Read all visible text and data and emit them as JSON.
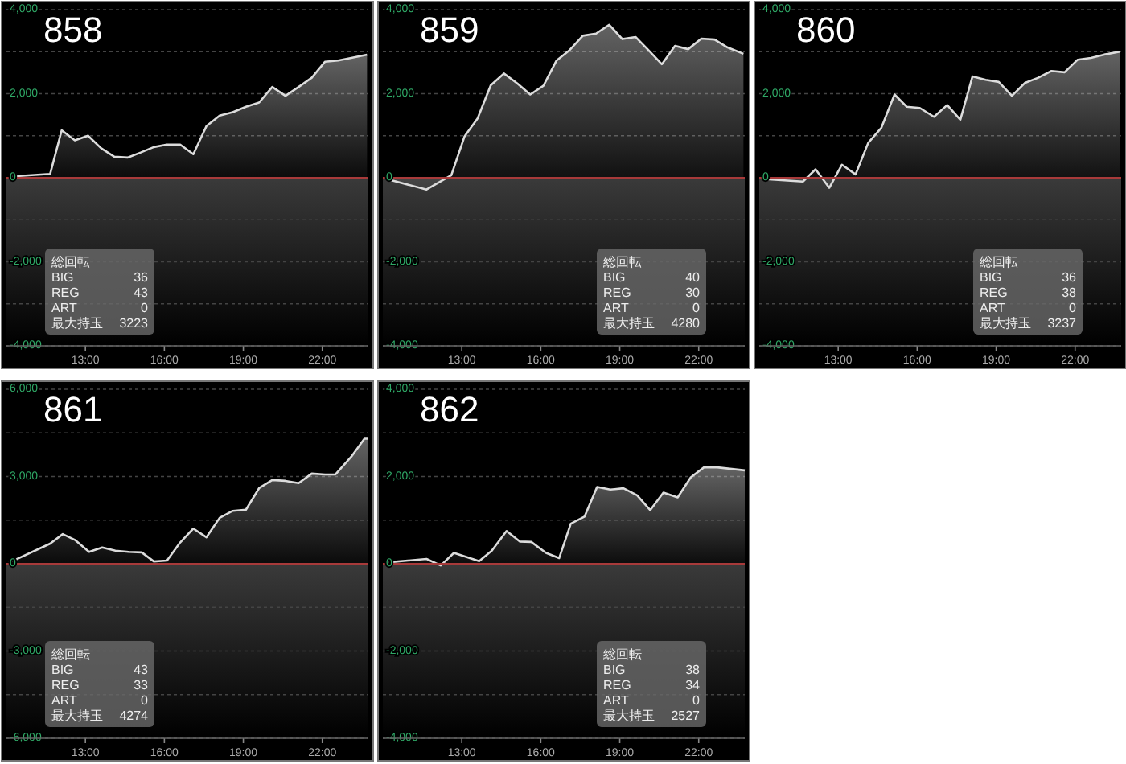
{
  "chart_data": [
    {
      "type": "area",
      "title": "858",
      "x": [
        10.14,
        11.66,
        12.1,
        12.6,
        13.1,
        13.6,
        14.1,
        14.6,
        15.1,
        15.6,
        16.1,
        16.6,
        17.1,
        17.6,
        18.1,
        18.6,
        19.1,
        19.6,
        20.1,
        20.6,
        21.1,
        21.6,
        22.1,
        22.6,
        23.1,
        23.7
      ],
      "series": [
        {
          "color": "#dcdcdc",
          "values": [
            30,
            90,
            1130,
            890,
            1000,
            700,
            500,
            480,
            600,
            730,
            790,
            790,
            560,
            1230,
            1480,
            1560,
            1690,
            1790,
            2160,
            1950,
            2160,
            2380,
            2760,
            2790,
            2850,
            2930
          ]
        }
      ],
      "xlim": [
        10,
        23.75
      ],
      "xticks": [
        {
          "value": 13,
          "label": "13:00"
        },
        {
          "value": 16,
          "label": "16:00"
        },
        {
          "value": 19,
          "label": "19:00"
        },
        {
          "value": 22,
          "label": "22:00"
        }
      ],
      "ylim": [
        -4000,
        4000
      ],
      "yticks": [
        {
          "value": 4000,
          "label": "4,000"
        },
        {
          "value": 3000,
          "label": null
        },
        {
          "value": 2000,
          "label": "2,000"
        },
        {
          "value": 1000,
          "label": null
        },
        {
          "value": 0,
          "label": "0"
        },
        {
          "value": -1000,
          "label": null
        },
        {
          "value": -2000,
          "label": "-2,000"
        },
        {
          "value": -3000,
          "label": null
        },
        {
          "value": -4000,
          "label": "-4,000"
        }
      ],
      "grid": "y",
      "ref_lines": [
        {
          "axis": "y",
          "value": 0,
          "color": "#a83a3a"
        }
      ],
      "annotations": [
        "総回転",
        "BIG 36",
        "REG 43",
        "ART 0",
        "最大持玉 3223"
      ]
    },
    {
      "type": "area",
      "title": "859",
      "x": [
        10.14,
        11.66,
        12.6,
        13.1,
        13.6,
        14.1,
        14.6,
        15.1,
        15.6,
        16.1,
        16.6,
        17.1,
        17.6,
        18.1,
        18.6,
        19.1,
        19.6,
        20.1,
        20.6,
        21.1,
        21.6,
        22.1,
        22.6,
        23.1,
        23.7
      ],
      "series": [
        {
          "color": "#dcdcdc",
          "values": [
            -30,
            -280,
            60,
            980,
            1410,
            2200,
            2480,
            2250,
            1980,
            2190,
            2790,
            3040,
            3380,
            3430,
            3640,
            3300,
            3350,
            3030,
            2700,
            3140,
            3060,
            3310,
            3290,
            3100,
            2950
          ]
        }
      ],
      "xlim": [
        10,
        23.75
      ],
      "xticks": [
        {
          "value": 13,
          "label": "13:00"
        },
        {
          "value": 16,
          "label": "16:00"
        },
        {
          "value": 19,
          "label": "19:00"
        },
        {
          "value": 22,
          "label": "22:00"
        }
      ],
      "ylim": [
        -4000,
        4000
      ],
      "yticks": [
        {
          "value": 4000,
          "label": "4,000"
        },
        {
          "value": 3000,
          "label": null
        },
        {
          "value": 2000,
          "label": "2,000"
        },
        {
          "value": 1000,
          "label": null
        },
        {
          "value": 0,
          "label": "0"
        },
        {
          "value": -1000,
          "label": null
        },
        {
          "value": -2000,
          "label": "-2,000"
        },
        {
          "value": -3000,
          "label": null
        },
        {
          "value": -4000,
          "label": "-4,000"
        }
      ],
      "grid": "y",
      "ref_lines": [
        {
          "axis": "y",
          "value": 0,
          "color": "#a83a3a"
        }
      ],
      "annotations": [
        "総回転",
        "BIG 40",
        "REG 30",
        "ART 0",
        "最大持玉 4280"
      ]
    },
    {
      "type": "area",
      "title": "860",
      "x": [
        10.14,
        11.66,
        12.14,
        12.66,
        13.14,
        13.66,
        14.14,
        14.64,
        15.14,
        15.6,
        16.1,
        16.64,
        17.14,
        17.64,
        18.1,
        18.6,
        19.1,
        19.6,
        20.1,
        20.6,
        21.1,
        21.6,
        22.1,
        22.6,
        23.1,
        23.7
      ],
      "series": [
        {
          "color": "#dcdcdc",
          "values": [
            -30,
            -90,
            200,
            -240,
            310,
            80,
            830,
            1190,
            1980,
            1690,
            1660,
            1450,
            1730,
            1380,
            2410,
            2330,
            2280,
            1950,
            2260,
            2380,
            2540,
            2510,
            2810,
            2850,
            2930,
            3000
          ]
        }
      ],
      "xlim": [
        10,
        23.75
      ],
      "xticks": [
        {
          "value": 13,
          "label": "13:00"
        },
        {
          "value": 16,
          "label": "16:00"
        },
        {
          "value": 19,
          "label": "19:00"
        },
        {
          "value": 22,
          "label": "22:00"
        }
      ],
      "ylim": [
        -4000,
        4000
      ],
      "yticks": [
        {
          "value": 4000,
          "label": "4,000"
        },
        {
          "value": 3000,
          "label": null
        },
        {
          "value": 2000,
          "label": "2,000"
        },
        {
          "value": 1000,
          "label": null
        },
        {
          "value": 0,
          "label": "0"
        },
        {
          "value": -1000,
          "label": null
        },
        {
          "value": -2000,
          "label": "-2,000"
        },
        {
          "value": -3000,
          "label": null
        },
        {
          "value": -4000,
          "label": "-4,000"
        }
      ],
      "grid": "y",
      "ref_lines": [
        {
          "axis": "y",
          "value": 0,
          "color": "#a83a3a"
        }
      ],
      "annotations": [
        "総回転",
        "BIG 36",
        "REG 38",
        "ART 0",
        "最大持玉 3237"
      ]
    },
    {
      "type": "area",
      "title": "861",
      "x": [
        10.1,
        11.66,
        12.14,
        12.6,
        13.14,
        13.64,
        14.14,
        14.64,
        15.14,
        15.6,
        16.1,
        16.6,
        17.1,
        17.6,
        18.1,
        18.6,
        19.1,
        19.6,
        20.1,
        20.6,
        21.1,
        21.6,
        22.1,
        22.5,
        23.1,
        23.6,
        23.75
      ],
      "series": [
        {
          "color": "#dcdcdc",
          "values": [
            40,
            690,
            1020,
            820,
            410,
            560,
            450,
            410,
            390,
            80,
            110,
            730,
            1210,
            910,
            1580,
            1820,
            1860,
            2600,
            2880,
            2850,
            2770,
            3100,
            3070,
            3070,
            3680,
            4300,
            4300
          ]
        }
      ],
      "xlim": [
        10,
        23.75
      ],
      "xticks": [
        {
          "value": 13,
          "label": "13:00"
        },
        {
          "value": 16,
          "label": "16:00"
        },
        {
          "value": 19,
          "label": "19:00"
        },
        {
          "value": 22,
          "label": "22:00"
        }
      ],
      "ylim": [
        -6000,
        6000
      ],
      "yticks": [
        {
          "value": 6000,
          "label": "6,000"
        },
        {
          "value": 4500,
          "label": null
        },
        {
          "value": 3000,
          "label": "3,000"
        },
        {
          "value": 1500,
          "label": null
        },
        {
          "value": 0,
          "label": "0"
        },
        {
          "value": -1500,
          "label": null
        },
        {
          "value": -3000,
          "label": "-3,000"
        },
        {
          "value": -4500,
          "label": null
        },
        {
          "value": -6000,
          "label": "-6,000"
        }
      ],
      "grid": "y",
      "ref_lines": [
        {
          "axis": "y",
          "value": 0,
          "color": "#a83a3a"
        }
      ],
      "annotations": [
        "総回転",
        "BIG 43",
        "REG 33",
        "ART 0",
        "最大持玉 4274"
      ]
    },
    {
      "type": "area",
      "title": "862",
      "x": [
        10.14,
        11.66,
        12.2,
        12.7,
        13.66,
        14.14,
        14.7,
        15.2,
        15.64,
        16.2,
        16.7,
        17.14,
        17.66,
        18.14,
        18.64,
        19.14,
        19.66,
        20.16,
        20.66,
        21.2,
        21.7,
        22.2,
        22.7,
        23.75
      ],
      "series": [
        {
          "color": "#dcdcdc",
          "values": [
            30,
            110,
            -40,
            250,
            60,
            300,
            750,
            510,
            500,
            250,
            130,
            920,
            1080,
            1760,
            1700,
            1730,
            1570,
            1230,
            1630,
            1520,
            1980,
            2210,
            2210,
            2140
          ]
        }
      ],
      "xlim": [
        10,
        23.75
      ],
      "xticks": [
        {
          "value": 13,
          "label": "13:00"
        },
        {
          "value": 16,
          "label": "16:00"
        },
        {
          "value": 19,
          "label": "19:00"
        },
        {
          "value": 22,
          "label": "22:00"
        }
      ],
      "ylim": [
        -4000,
        4000
      ],
      "yticks": [
        {
          "value": 4000,
          "label": "4,000"
        },
        {
          "value": 3000,
          "label": null
        },
        {
          "value": 2000,
          "label": "2,000"
        },
        {
          "value": 1000,
          "label": null
        },
        {
          "value": 0,
          "label": "0"
        },
        {
          "value": -1000,
          "label": null
        },
        {
          "value": -2000,
          "label": "-2,000"
        },
        {
          "value": -3000,
          "label": null
        },
        {
          "value": -4000,
          "label": "-4,000"
        }
      ],
      "grid": "y",
      "ref_lines": [
        {
          "axis": "y",
          "value": 0,
          "color": "#a83a3a"
        }
      ],
      "annotations": [
        "総回転",
        "BIG 38",
        "REG 34",
        "ART 0",
        "最大持玉 2527"
      ]
    }
  ]
}
